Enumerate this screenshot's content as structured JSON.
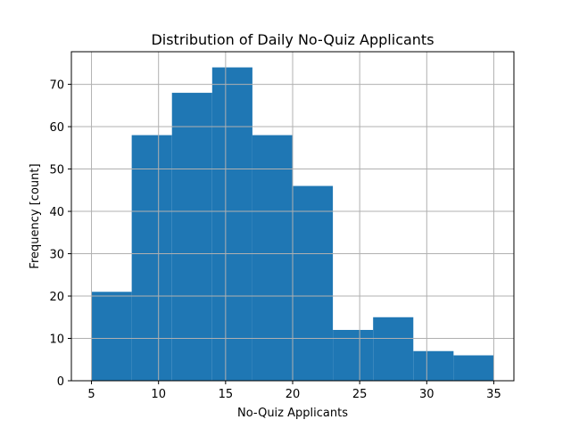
{
  "chart_data": {
    "type": "bar",
    "title": "Distribution of Daily No-Quiz Applicants",
    "xlabel": "No-Quiz Applicants",
    "ylabel": "Frequency [count]",
    "bin_edges": [
      5,
      8,
      11,
      14,
      17,
      20,
      23,
      26,
      29,
      32,
      35
    ],
    "values": [
      21,
      58,
      68,
      74,
      58,
      46,
      12,
      15,
      7,
      6
    ],
    "xlim": [
      3.5,
      36.5
    ],
    "ylim": [
      0,
      77.7
    ],
    "xticks": [
      5,
      10,
      15,
      20,
      25,
      30,
      35
    ],
    "yticks": [
      0,
      10,
      20,
      30,
      40,
      50,
      60,
      70
    ],
    "grid": true,
    "bar_color": "#1f77b4"
  }
}
